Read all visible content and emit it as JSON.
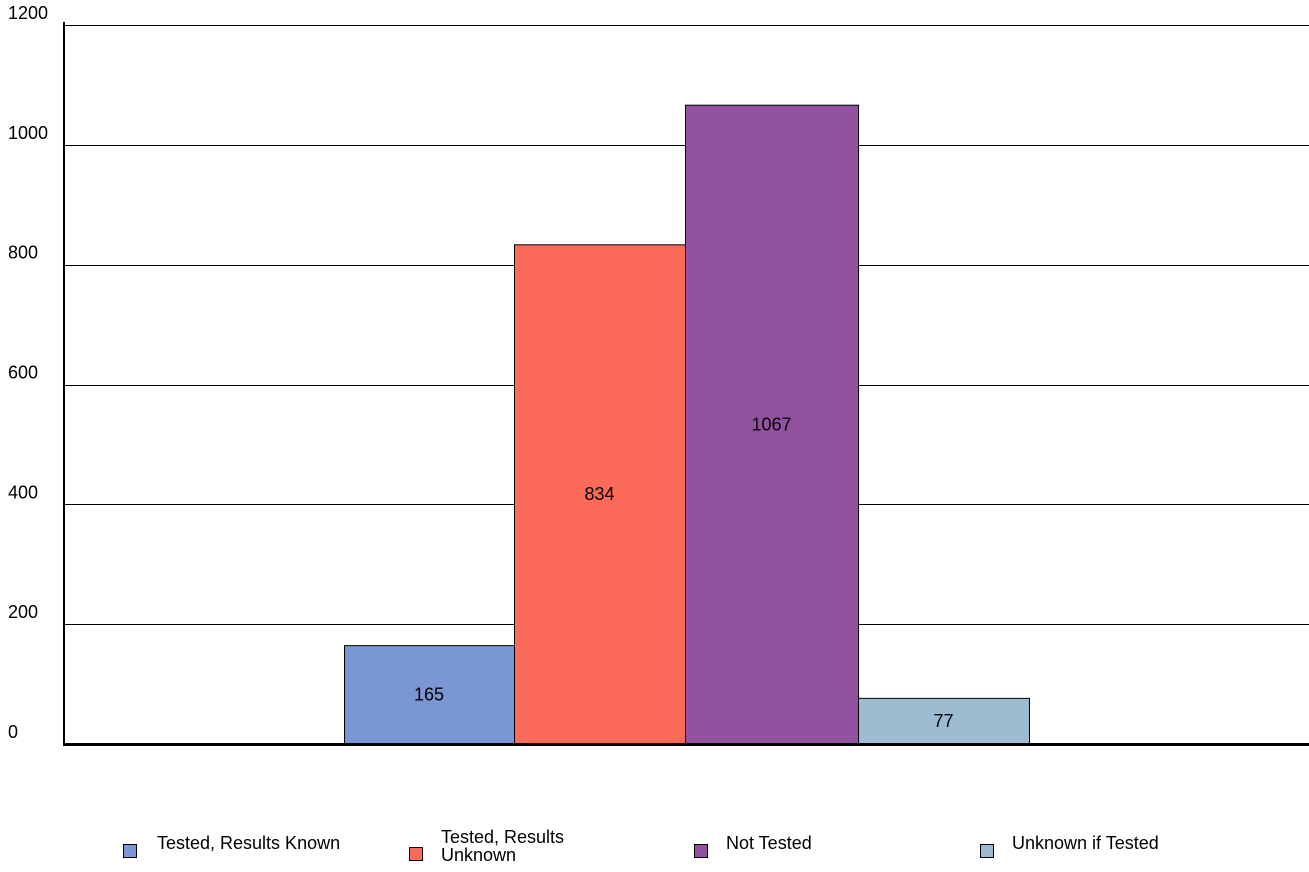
{
  "chart_data": {
    "type": "bar",
    "title": "",
    "xlabel": "",
    "ylabel": "",
    "ylim": [
      0,
      1200
    ],
    "yticks": [
      0,
      200,
      400,
      600,
      800,
      1000,
      1200
    ],
    "grid": true,
    "legend_position": "bottom",
    "categories": [
      "Tested, Results Known",
      "Tested, Results Unknown",
      "Not Tested",
      "Unknown if Tested"
    ],
    "values": [
      165,
      834,
      1067,
      77
    ],
    "data_labels": [
      "165",
      "834",
      "1067",
      "77"
    ],
    "colors": [
      "#7b96d4",
      "#fc6b5a",
      "#9352a0",
      "#9dbbd1"
    ]
  },
  "legend": {
    "items": [
      {
        "label": "Tested, Results Known",
        "color": "#7b96d4"
      },
      {
        "label": "Tested, Results Unknown",
        "color": "#fc6b5a"
      },
      {
        "label": "Not Tested",
        "color": "#9352a0"
      },
      {
        "label": "Unknown if Tested",
        "color": "#9dbbd1"
      }
    ]
  }
}
